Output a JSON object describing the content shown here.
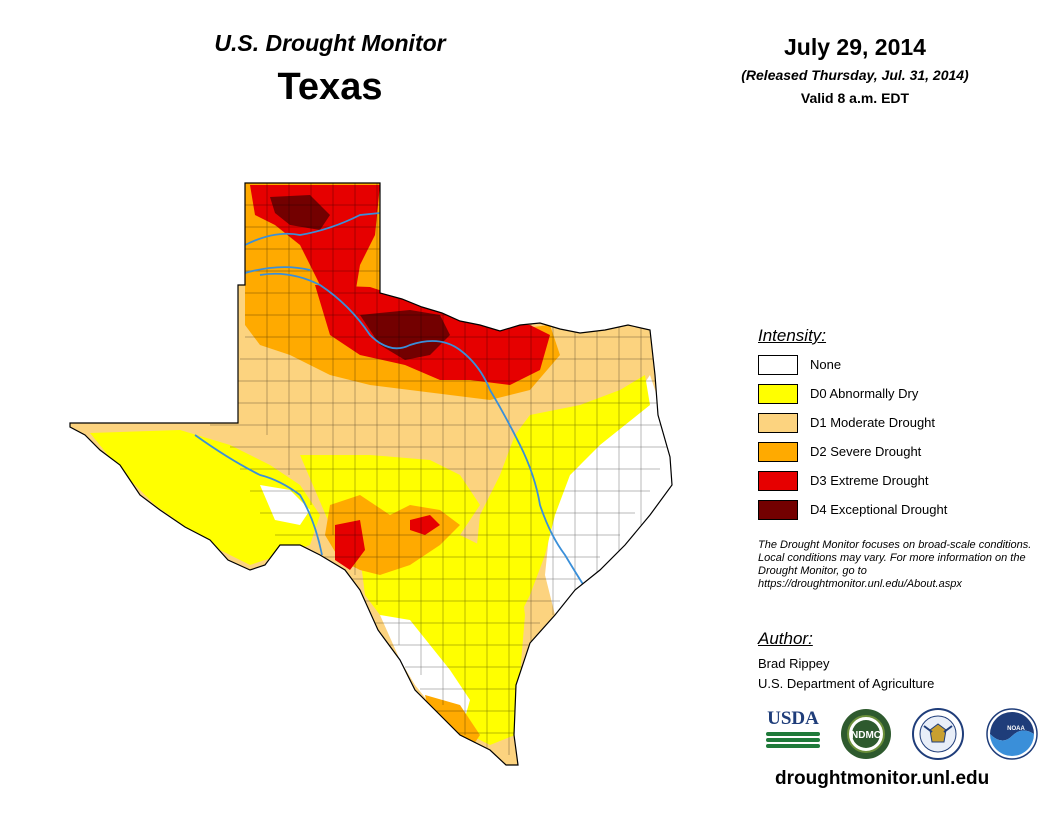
{
  "header": {
    "title": "U.S. Drought Monitor",
    "region": "Texas",
    "date": "July 29, 2014",
    "released": "(Released Thursday, Jul. 31, 2014)",
    "valid": "Valid 8 a.m. EDT"
  },
  "legend": {
    "title": "Intensity:",
    "items": [
      {
        "label": "None",
        "color": "#ffffff"
      },
      {
        "label": "D0 Abnormally Dry",
        "color": "#ffff00"
      },
      {
        "label": "D1 Moderate Drought",
        "color": "#fcd37f"
      },
      {
        "label": "D2 Severe Drought",
        "color": "#ffaa00"
      },
      {
        "label": "D3 Extreme Drought",
        "color": "#e60000"
      },
      {
        "label": "D4 Exceptional Drought",
        "color": "#730000"
      }
    ]
  },
  "note": "The Drought Monitor focuses on broad-scale conditions. Local conditions may vary. For more information on the Drought Monitor, go to https://droughtmonitor.unl.edu/About.aspx",
  "author": {
    "heading": "Author:",
    "name": "Brad Rippey",
    "organization": "U.S. Department of Agriculture"
  },
  "logos": {
    "usda": "USDA",
    "ndmc": "NDMC",
    "noaa": "NOAA"
  },
  "website": "droughtmonitor.unl.edu",
  "colors": {
    "river": "#3a8fd9",
    "county_border": "#000000"
  }
}
